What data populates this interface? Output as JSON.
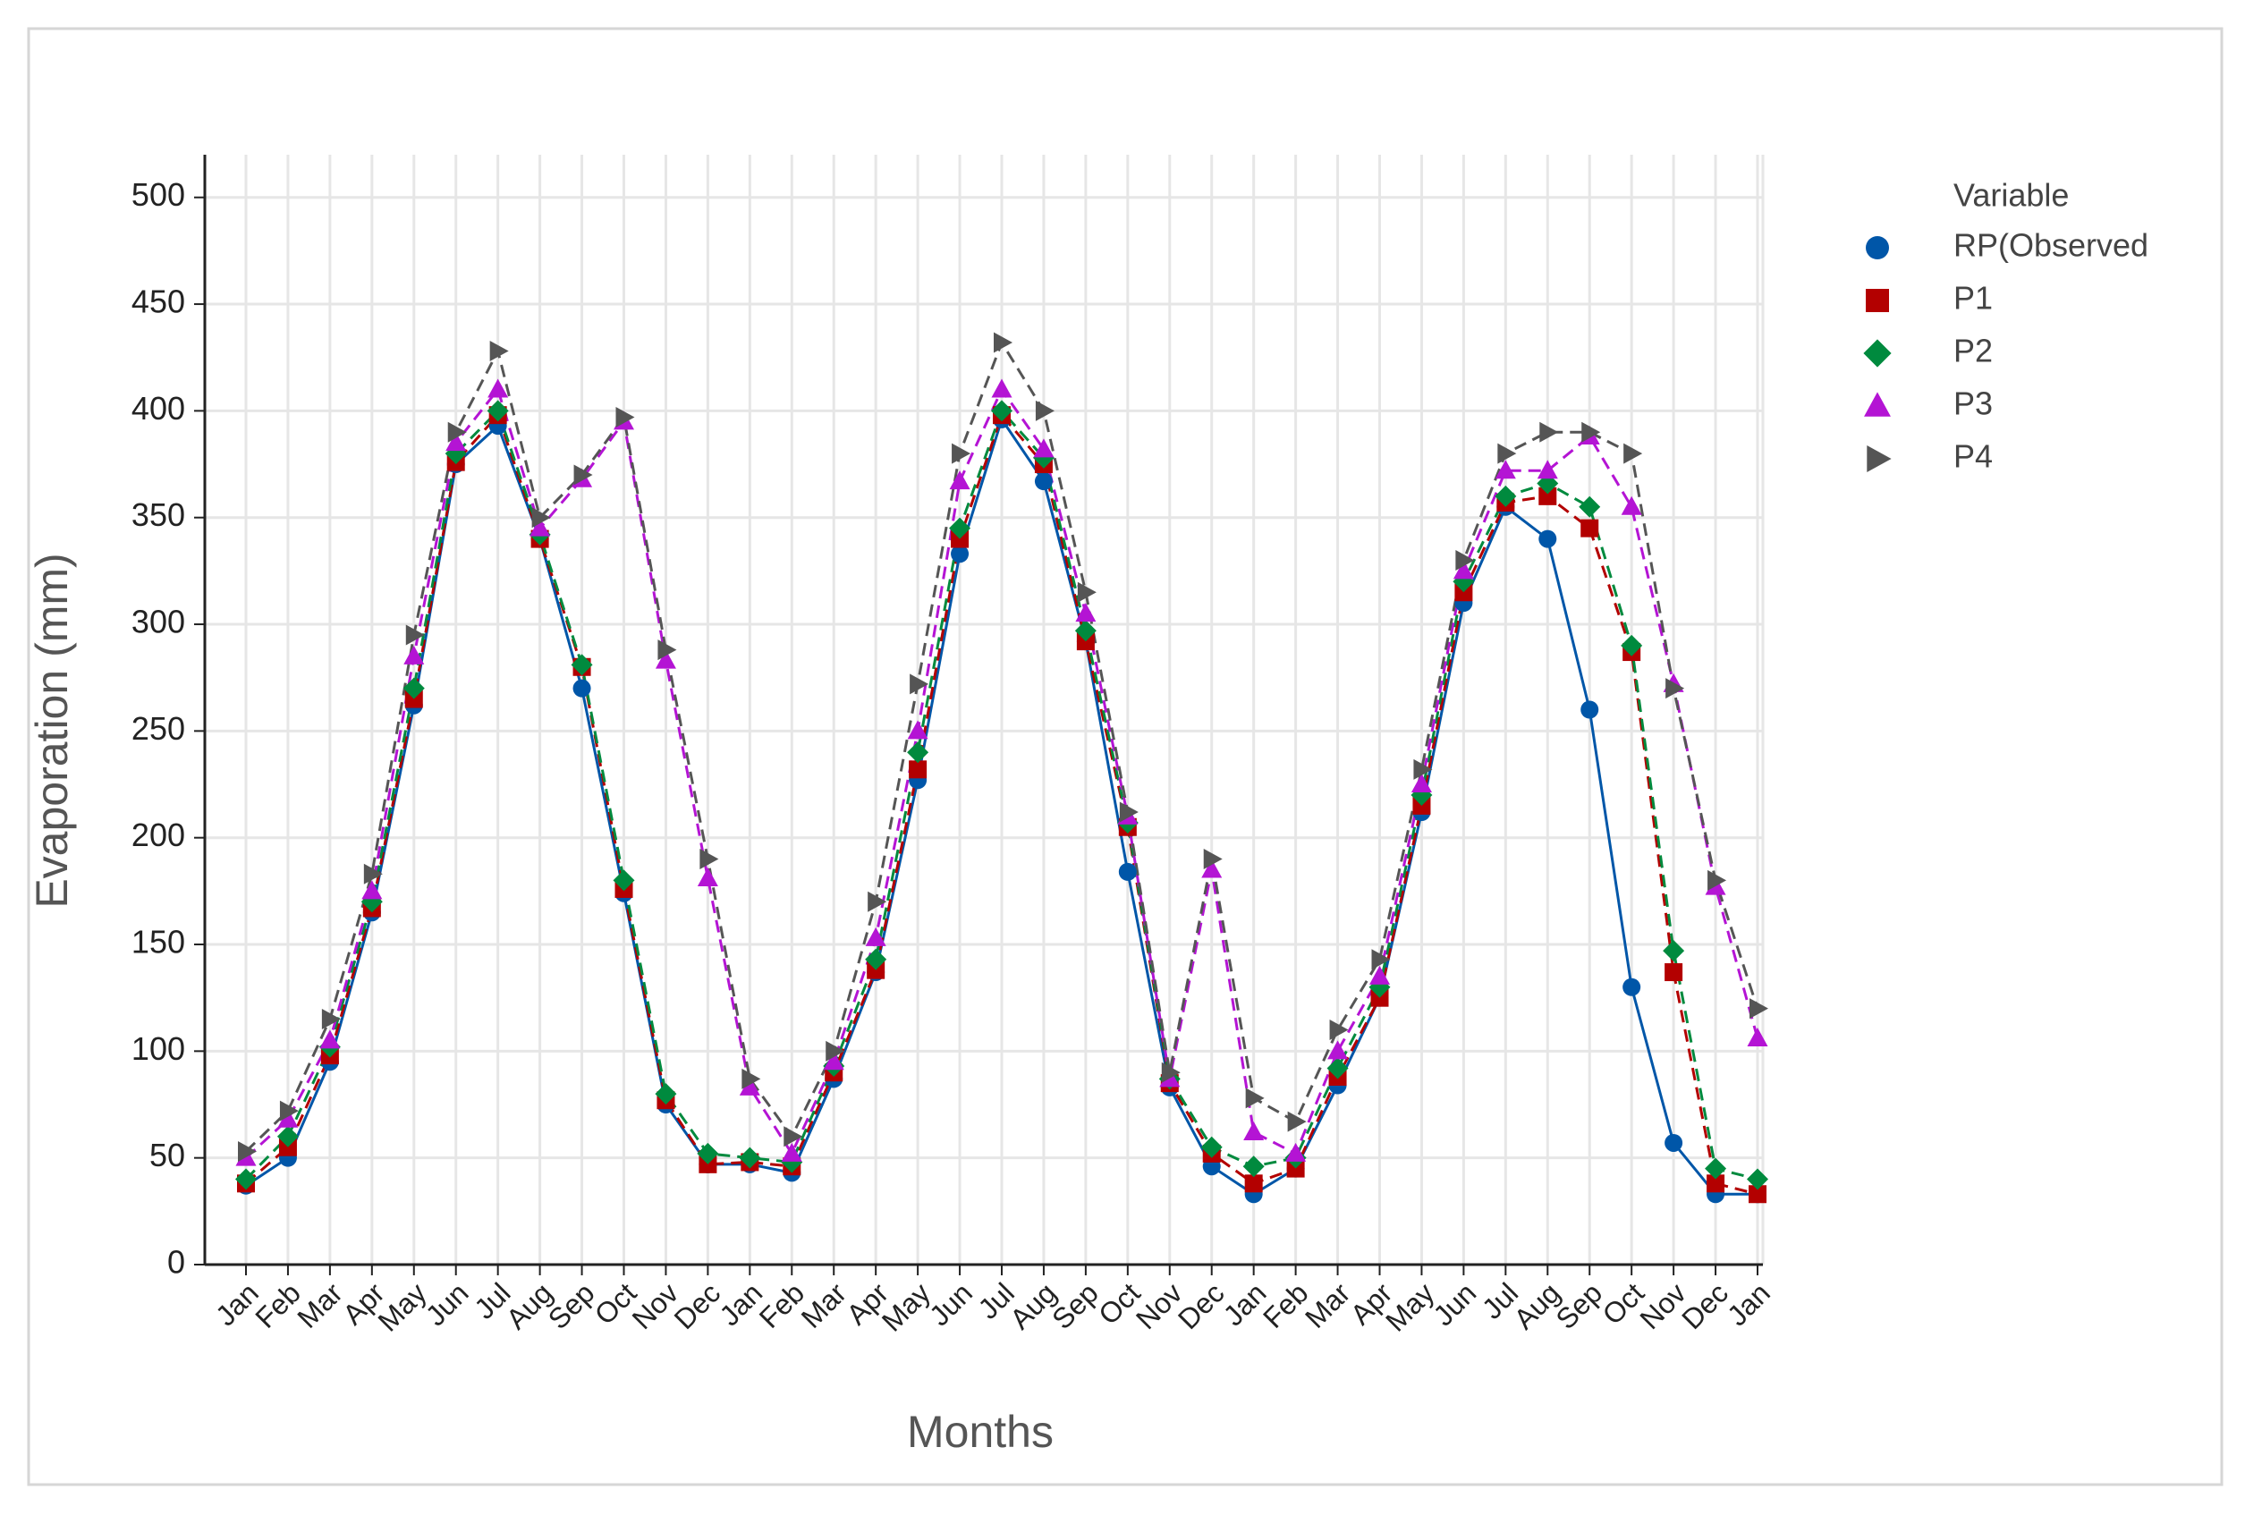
{
  "chart_data": {
    "type": "line",
    "x_label": "Months",
    "y_label": "Evaporation (mm)",
    "legend_title": "Variable",
    "categories": [
      "Jan",
      "Feb",
      "Mar",
      "Apr",
      "May",
      "Jun",
      "Jul",
      "Aug",
      "Sep",
      "Oct",
      "Nov",
      "Dec",
      "Jan",
      "Feb",
      "Mar",
      "Apr",
      "May",
      "Jun",
      "Jul",
      "Aug",
      "Sep",
      "Oct",
      "Nov",
      "Dec",
      "Jan",
      "Feb",
      "Mar",
      "Apr",
      "May",
      "Jun",
      "Jul",
      "Aug",
      "Sep",
      "Oct",
      "Nov",
      "Dec",
      "Jan"
    ],
    "ylim": [
      0,
      520
    ],
    "yticks": [
      0,
      50,
      100,
      150,
      200,
      250,
      300,
      350,
      400,
      450,
      500
    ],
    "grid": true,
    "legend": "right",
    "series": [
      {
        "name": "RP(Observed",
        "color": "#0056a8",
        "marker": "circle",
        "dashed": false,
        "values": [
          37,
          50,
          95,
          165,
          262,
          375,
          393,
          340,
          270,
          174,
          75,
          47,
          47,
          43,
          87,
          137,
          227,
          333,
          396,
          367,
          292,
          184,
          83,
          46,
          33,
          45,
          84,
          125,
          212,
          310,
          355,
          340,
          260,
          130,
          57,
          33,
          33
        ]
      },
      {
        "name": "P1",
        "color": "#b30000",
        "marker": "square",
        "dashed": true,
        "values": [
          38,
          55,
          98,
          167,
          265,
          376,
          398,
          340,
          280,
          176,
          77,
          47,
          48,
          46,
          90,
          138,
          232,
          340,
          398,
          375,
          292,
          205,
          85,
          52,
          38,
          45,
          88,
          125,
          215,
          315,
          357,
          360,
          345,
          287,
          137,
          38,
          33
        ]
      },
      {
        "name": "P2",
        "color": "#008a3e",
        "marker": "diamond",
        "dashed": true,
        "values": [
          40,
          60,
          102,
          170,
          270,
          380,
          400,
          342,
          281,
          180,
          80,
          52,
          50,
          48,
          93,
          143,
          240,
          345,
          400,
          378,
          297,
          207,
          87,
          55,
          46,
          50,
          92,
          130,
          220,
          320,
          360,
          366,
          355,
          290,
          147,
          45,
          40
        ]
      },
      {
        "name": "P3",
        "color": "#b414d4",
        "marker": "triangle",
        "dashed": true,
        "values": [
          50,
          68,
          105,
          175,
          285,
          385,
          410,
          345,
          368,
          395,
          283,
          181,
          83,
          52,
          95,
          153,
          250,
          367,
          410,
          382,
          305,
          210,
          87,
          185,
          62,
          52,
          100,
          135,
          225,
          325,
          372,
          372,
          388,
          355,
          272,
          177,
          106
        ]
      },
      {
        "name": "P4",
        "color": "#555555",
        "marker": "triangle-right",
        "dashed": true,
        "values": [
          53,
          72,
          115,
          183,
          295,
          390,
          428,
          350,
          370,
          397,
          288,
          190,
          87,
          60,
          100,
          170,
          272,
          380,
          432,
          400,
          315,
          212,
          90,
          190,
          78,
          67,
          110,
          143,
          232,
          330,
          380,
          390,
          390,
          380,
          270,
          180,
          120
        ]
      }
    ]
  }
}
